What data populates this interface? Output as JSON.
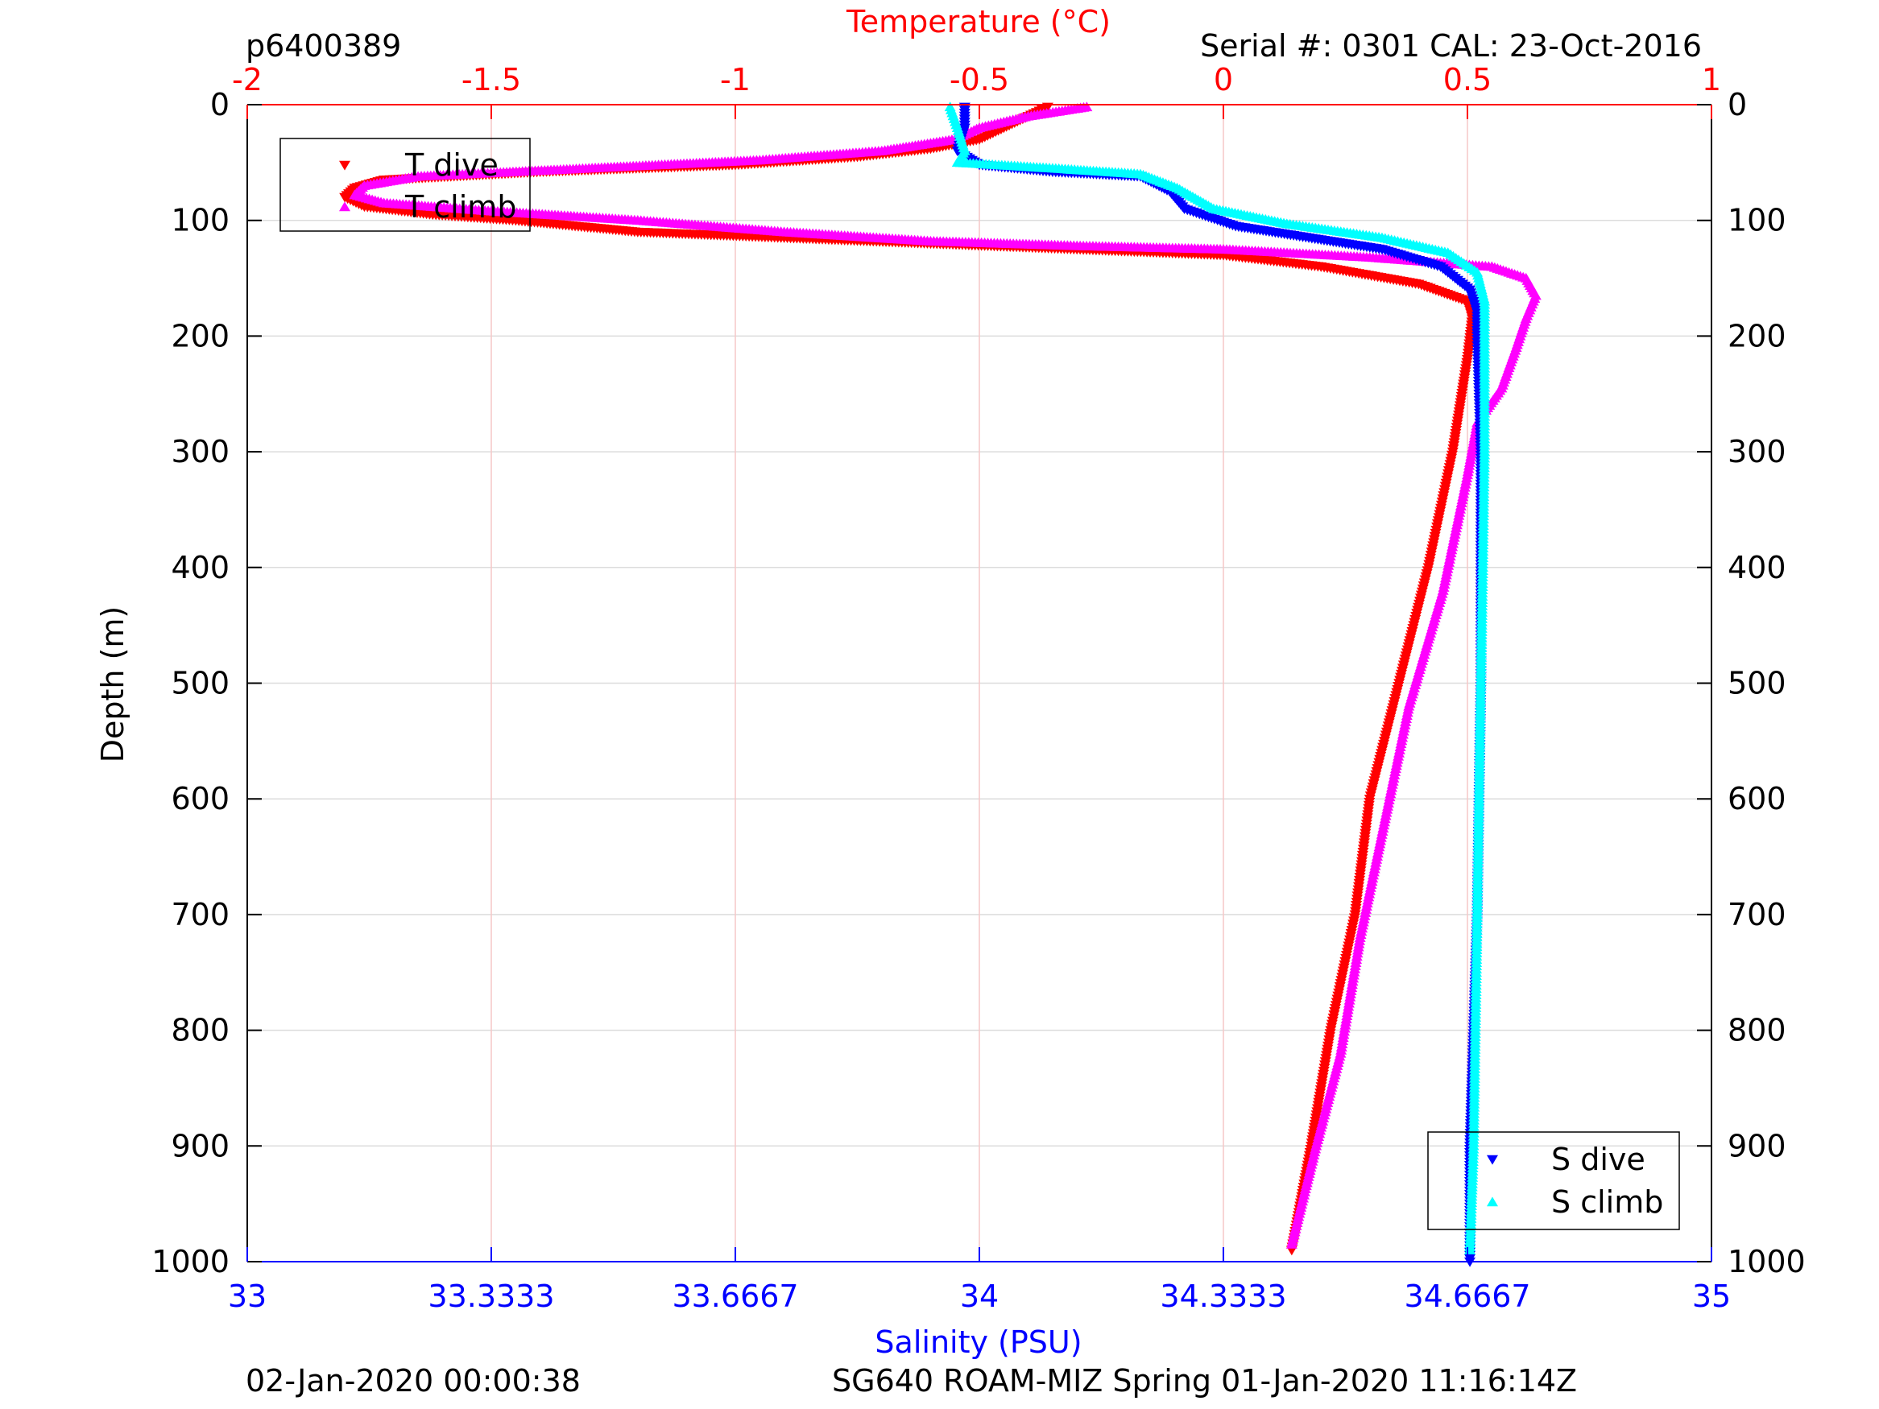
{
  "header": {
    "profile_id": "p6400389",
    "serial_info": "Serial #: 0301  CAL: 23-Oct-2016"
  },
  "footer": {
    "left_timestamp": "02-Jan-2020 00:00:38",
    "right_info": "SG640 ROAM-MIZ Spring 01-Jan-2020 11:16:14Z"
  },
  "colors": {
    "temperature_axis": "#ff0000",
    "salinity_axis": "#0000ff",
    "t_dive": "#ff0000",
    "t_climb": "#ff00ff",
    "s_dive": "#0000ff",
    "s_climb": "#00ffff"
  },
  "chart_data": {
    "type": "scatter",
    "ylabel": "Depth (m)",
    "ylim": [
      0,
      1000
    ],
    "y_reversed": true,
    "y_ticks": [
      0,
      100,
      200,
      300,
      400,
      500,
      600,
      700,
      800,
      900,
      1000
    ],
    "grid": true,
    "top_axis": {
      "label": "Temperature (°C)",
      "range": [
        -2,
        1
      ],
      "ticks": [
        -2,
        -1.5,
        -1,
        -0.5,
        0,
        0.5,
        1
      ],
      "tick_labels": [
        "-2",
        "-1.5",
        "-1",
        "-0.5",
        "0",
        "0.5",
        "1"
      ]
    },
    "bottom_axis": {
      "label": "Salinity (PSU)",
      "range": [
        33,
        35
      ],
      "ticks": [
        33,
        33.3333,
        33.6667,
        34,
        34.3333,
        34.6667,
        35
      ],
      "tick_labels": [
        "33",
        "33.3333",
        "33.6667",
        "34",
        "34.3333",
        "34.6667",
        "35"
      ]
    },
    "legends": [
      {
        "position": "top-left",
        "entries": [
          "T dive",
          "T climb"
        ]
      },
      {
        "position": "bottom-right",
        "entries": [
          "S dive",
          "S climb"
        ]
      }
    ],
    "series": [
      {
        "name": "T dive",
        "axis": "temperature",
        "marker": "triangle-down",
        "points": [
          {
            "x": -0.36,
            "y": 2
          },
          {
            "x": -0.4,
            "y": 10
          },
          {
            "x": -0.45,
            "y": 20
          },
          {
            "x": -0.5,
            "y": 30
          },
          {
            "x": -0.6,
            "y": 38
          },
          {
            "x": -0.75,
            "y": 45
          },
          {
            "x": -1.0,
            "y": 52
          },
          {
            "x": -1.4,
            "y": 58
          },
          {
            "x": -1.72,
            "y": 65
          },
          {
            "x": -1.78,
            "y": 72
          },
          {
            "x": -1.8,
            "y": 80
          },
          {
            "x": -1.76,
            "y": 88
          },
          {
            "x": -1.62,
            "y": 95
          },
          {
            "x": -1.45,
            "y": 100
          },
          {
            "x": -1.2,
            "y": 110
          },
          {
            "x": -0.9,
            "y": 115
          },
          {
            "x": -0.6,
            "y": 120
          },
          {
            "x": -0.3,
            "y": 125
          },
          {
            "x": 0.0,
            "y": 130
          },
          {
            "x": 0.2,
            "y": 140
          },
          {
            "x": 0.4,
            "y": 155
          },
          {
            "x": 0.5,
            "y": 170
          },
          {
            "x": 0.51,
            "y": 185
          },
          {
            "x": 0.5,
            "y": 220
          },
          {
            "x": 0.47,
            "y": 300
          },
          {
            "x": 0.42,
            "y": 400
          },
          {
            "x": 0.36,
            "y": 500
          },
          {
            "x": 0.3,
            "y": 600
          },
          {
            "x": 0.27,
            "y": 700
          },
          {
            "x": 0.22,
            "y": 800
          },
          {
            "x": 0.18,
            "y": 900
          },
          {
            "x": 0.14,
            "y": 990
          }
        ]
      },
      {
        "name": "T climb",
        "axis": "temperature",
        "marker": "triangle-up",
        "points": [
          {
            "x": -0.28,
            "y": 2
          },
          {
            "x": -0.4,
            "y": 10
          },
          {
            "x": -0.5,
            "y": 20
          },
          {
            "x": -0.55,
            "y": 30
          },
          {
            "x": -0.7,
            "y": 40
          },
          {
            "x": -0.95,
            "y": 48
          },
          {
            "x": -1.3,
            "y": 55
          },
          {
            "x": -1.65,
            "y": 62
          },
          {
            "x": -1.76,
            "y": 70
          },
          {
            "x": -1.78,
            "y": 78
          },
          {
            "x": -1.72,
            "y": 85
          },
          {
            "x": -1.5,
            "y": 92
          },
          {
            "x": -1.2,
            "y": 100
          },
          {
            "x": -0.9,
            "y": 110
          },
          {
            "x": -0.6,
            "y": 118
          },
          {
            "x": -0.3,
            "y": 122
          },
          {
            "x": 0.0,
            "y": 125
          },
          {
            "x": 0.3,
            "y": 132
          },
          {
            "x": 0.55,
            "y": 140
          },
          {
            "x": 0.62,
            "y": 150
          },
          {
            "x": 0.64,
            "y": 165
          },
          {
            "x": 0.62,
            "y": 185
          },
          {
            "x": 0.6,
            "y": 210
          },
          {
            "x": 0.57,
            "y": 245
          },
          {
            "x": 0.52,
            "y": 275
          },
          {
            "x": 0.5,
            "y": 320
          },
          {
            "x": 0.45,
            "y": 420
          },
          {
            "x": 0.38,
            "y": 520
          },
          {
            "x": 0.33,
            "y": 620
          },
          {
            "x": 0.28,
            "y": 720
          },
          {
            "x": 0.24,
            "y": 820
          },
          {
            "x": 0.19,
            "y": 900
          },
          {
            "x": 0.14,
            "y": 985
          }
        ]
      },
      {
        "name": "S dive",
        "axis": "salinity",
        "marker": "triangle-down",
        "points": [
          {
            "x": 33.98,
            "y": 2
          },
          {
            "x": 33.98,
            "y": 20
          },
          {
            "x": 33.97,
            "y": 40
          },
          {
            "x": 34.0,
            "y": 52
          },
          {
            "x": 34.1,
            "y": 58
          },
          {
            "x": 34.22,
            "y": 62
          },
          {
            "x": 34.26,
            "y": 75
          },
          {
            "x": 34.28,
            "y": 90
          },
          {
            "x": 34.35,
            "y": 105
          },
          {
            "x": 34.45,
            "y": 115
          },
          {
            "x": 34.55,
            "y": 125
          },
          {
            "x": 34.63,
            "y": 140
          },
          {
            "x": 34.67,
            "y": 160
          },
          {
            "x": 34.68,
            "y": 180
          },
          {
            "x": 34.68,
            "y": 200
          },
          {
            "x": 34.685,
            "y": 300
          },
          {
            "x": 34.685,
            "y": 500
          },
          {
            "x": 34.68,
            "y": 700
          },
          {
            "x": 34.67,
            "y": 900
          },
          {
            "x": 34.67,
            "y": 1000
          }
        ]
      },
      {
        "name": "S climb",
        "axis": "salinity",
        "marker": "triangle-up",
        "points": [
          {
            "x": 33.96,
            "y": 2
          },
          {
            "x": 33.97,
            "y": 20
          },
          {
            "x": 33.98,
            "y": 40
          },
          {
            "x": 33.97,
            "y": 50
          },
          {
            "x": 34.1,
            "y": 55
          },
          {
            "x": 34.22,
            "y": 60
          },
          {
            "x": 34.27,
            "y": 72
          },
          {
            "x": 34.32,
            "y": 90
          },
          {
            "x": 34.42,
            "y": 103
          },
          {
            "x": 34.55,
            "y": 115
          },
          {
            "x": 34.64,
            "y": 128
          },
          {
            "x": 34.68,
            "y": 145
          },
          {
            "x": 34.69,
            "y": 170
          },
          {
            "x": 34.69,
            "y": 200
          },
          {
            "x": 34.69,
            "y": 300
          },
          {
            "x": 34.685,
            "y": 500
          },
          {
            "x": 34.68,
            "y": 700
          },
          {
            "x": 34.675,
            "y": 900
          },
          {
            "x": 34.67,
            "y": 990
          }
        ]
      }
    ]
  }
}
